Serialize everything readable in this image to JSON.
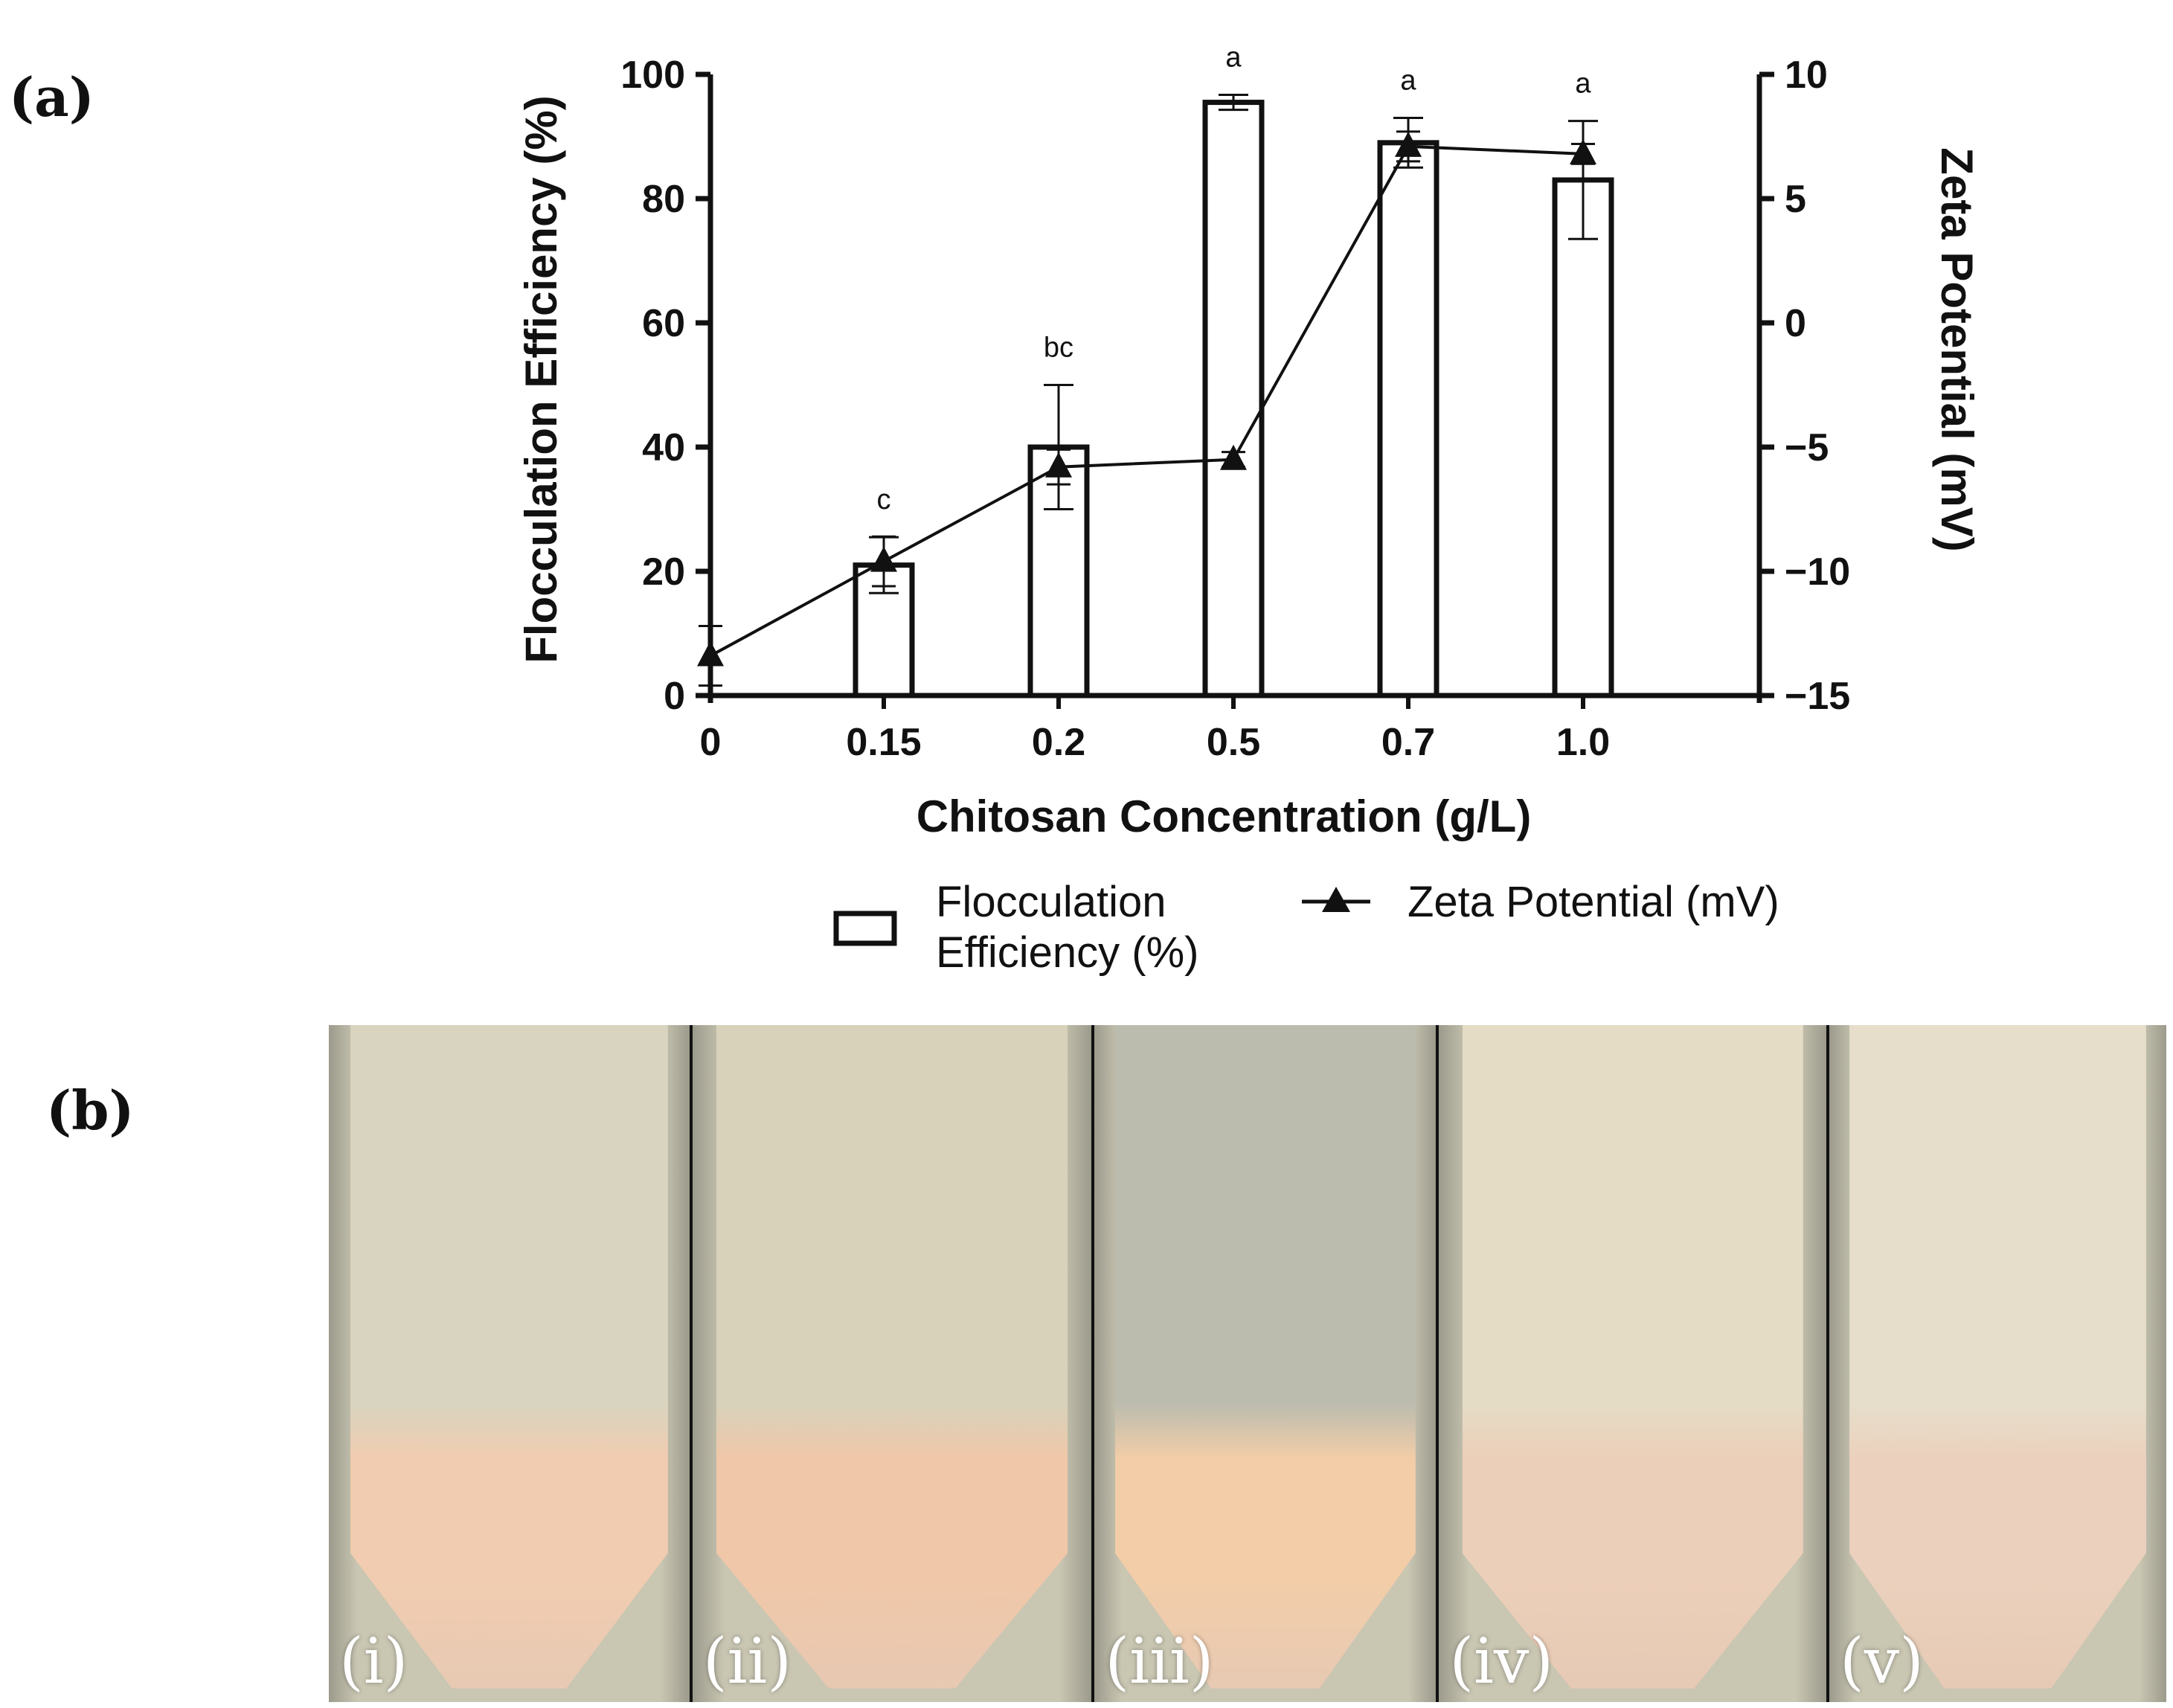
{
  "panel_a_label": "(a)",
  "panel_b_label": "(b)",
  "chart_data": {
    "type": "bar",
    "categories": [
      "0",
      "0.15",
      "0.2",
      "0.5",
      "0.7",
      "1.0"
    ],
    "xlabel": "Chitosan Concentration (g/L)",
    "ylabel": "Flocculation  Efficiency (%)",
    "y2label": "Zeta Potential (mV)",
    "ylim": [
      0,
      100
    ],
    "y2lim": [
      -15,
      10
    ],
    "yticks": [
      "0",
      "20",
      "40",
      "60",
      "80",
      "100"
    ],
    "y2ticks": [
      "−15",
      "−10",
      "−5",
      "0",
      "5",
      "10"
    ],
    "series": [
      {
        "name": "Flocculation Efficiency (%)",
        "kind": "bar",
        "values": [
          0,
          21,
          40,
          95.5,
          89,
          83
        ],
        "errors": [
          0,
          4.5,
          10,
          1.2,
          4,
          9.5
        ],
        "labels": [
          "",
          "c",
          "bc",
          "a",
          "a",
          "a"
        ]
      },
      {
        "name": "Zeta Potential (mV)",
        "kind": "line",
        "axis": "y2",
        "values": [
          -13.4,
          -9.6,
          -5.8,
          -5.5,
          7.1,
          6.8
        ],
        "errors": [
          1.2,
          1.0,
          0.7,
          0.3,
          0.6,
          0.4
        ]
      }
    ],
    "legend": {
      "position": "bottom",
      "bar_label_line1": "Flocculation",
      "bar_label_line2": "Efficiency (%)",
      "line_label": "Zeta Potential (mV)"
    }
  },
  "photos": [
    {
      "label": "(i)",
      "liquid": "#d9d4bf",
      "floc": "#f1ccb0"
    },
    {
      "label": "(ii)",
      "liquid": "#d8d2bb",
      "floc": "#f0c7a8"
    },
    {
      "label": "(iii)",
      "liquid": "#bcbcae",
      "floc": "#f2cda8"
    },
    {
      "label": "(iv)",
      "liquid": "#e5dcc6",
      "floc": "#eccfb9"
    },
    {
      "label": "(v)",
      "liquid": "#e6decb",
      "floc": "#ebd1bd"
    }
  ]
}
